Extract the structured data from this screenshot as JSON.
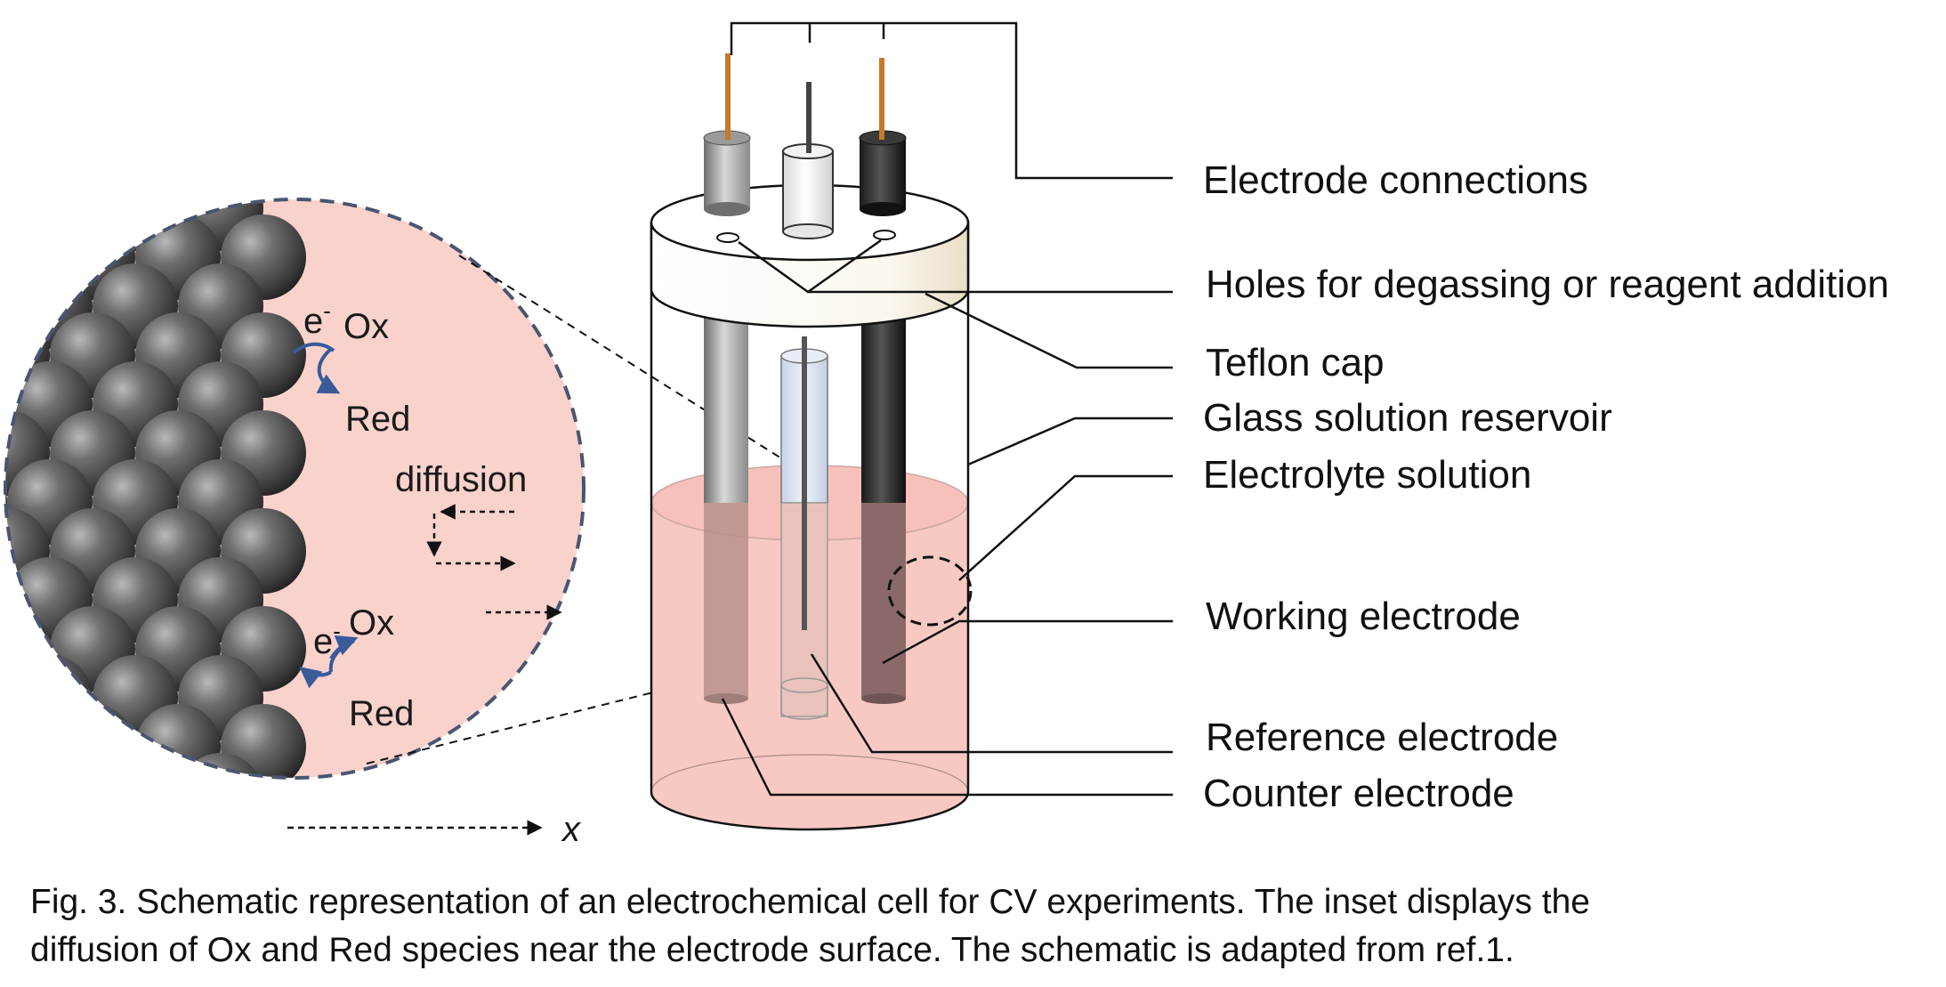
{
  "figure": {
    "labels": [
      "Electrode connections",
      "Holes for degassing or reagent addition",
      "Teflon cap",
      "Glass solution reservoir",
      "Electrolyte solution",
      "Working electrode",
      "Reference electrode",
      "Counter electrode"
    ],
    "inset": {
      "ox_top": "Ox",
      "red_top": "Red",
      "ox_bottom": "Ox",
      "red_bottom": "Red",
      "electron": "e",
      "electron_charge": "-",
      "diffusion": "diffusion",
      "axis_label": "x"
    },
    "caption_line1": "Fig. 3. Schematic representation of an electrochemical cell for CV experiments. The inset displays the",
    "caption_line2": "diffusion of Ox and Red species near the electrode surface. The schematic is adapted from ref.1."
  },
  "colors": {
    "solution": "#f8c9c2",
    "inset_fill": "#f9d2cb",
    "electron_arrow": "#3a5a9a",
    "wire": "#c57a2a",
    "dashed_outline": "#4a5570"
  }
}
